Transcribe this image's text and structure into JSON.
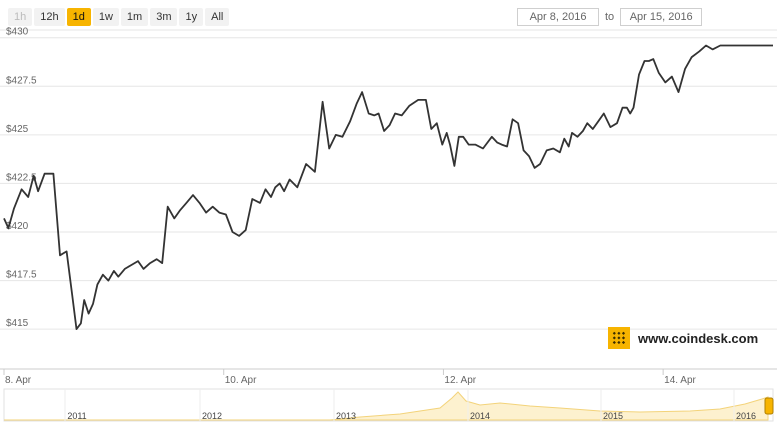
{
  "toolbar": {
    "buttons": [
      {
        "label": "1h",
        "state": "disabled"
      },
      {
        "label": "12h",
        "state": "normal"
      },
      {
        "label": "1d",
        "state": "active"
      },
      {
        "label": "1w",
        "state": "normal"
      },
      {
        "label": "1m",
        "state": "normal"
      },
      {
        "label": "3m",
        "state": "normal"
      },
      {
        "label": "1y",
        "state": "normal"
      },
      {
        "label": "All",
        "state": "normal"
      }
    ]
  },
  "date_range": {
    "from": "Apr 8, 2016",
    "to_label": "to",
    "to": "Apr 15, 2016"
  },
  "logo": {
    "text": "www.coindesk.com"
  },
  "colors": {
    "line": "#333333",
    "accent": "#f7b400",
    "navigator_fill": "#fdf1cf",
    "grid": "#e6e6e6"
  },
  "chart_data": {
    "type": "line",
    "title": "",
    "xlabel": "",
    "ylabel": "",
    "ylim": [
      413,
      430.5
    ],
    "xlim": [
      8.0,
      15.0
    ],
    "yticks": [
      {
        "value": 415,
        "label": "$415"
      },
      {
        "value": 417.5,
        "label": "$417.5"
      },
      {
        "value": 420,
        "label": "$420"
      },
      {
        "value": 422.5,
        "label": "$422.5"
      },
      {
        "value": 425,
        "label": "$425"
      },
      {
        "value": 427.5,
        "label": "$427.5"
      },
      {
        "value": 430,
        "label": "$430"
      }
    ],
    "xticks": [
      {
        "value": 8.0,
        "label": "8. Apr"
      },
      {
        "value": 10.0,
        "label": "10. Apr"
      },
      {
        "value": 12.0,
        "label": "12. Apr"
      },
      {
        "value": 14.0,
        "label": "14. Apr"
      }
    ],
    "grid": true,
    "series": [
      {
        "x": [
          8.0,
          8.04,
          8.09,
          8.16,
          8.22,
          8.27,
          8.31,
          8.37,
          8.45,
          8.51,
          8.57,
          8.62,
          8.66,
          8.7,
          8.73,
          8.77,
          8.81,
          8.85,
          8.9,
          8.95,
          9.0,
          9.04,
          9.1,
          9.16,
          9.22,
          9.27,
          9.33,
          9.39,
          9.44,
          9.49,
          9.55,
          9.6,
          9.66,
          9.72,
          9.78,
          9.84,
          9.9,
          9.96,
          10.02,
          10.08,
          10.14,
          10.2,
          10.26,
          10.33,
          10.38,
          10.43,
          10.47,
          10.51,
          10.55,
          10.6,
          10.67,
          10.75,
          10.83,
          10.9,
          10.96,
          11.02,
          11.08,
          11.15,
          11.21,
          11.26,
          11.32,
          11.37,
          11.41,
          11.46,
          11.51,
          11.56,
          11.62,
          11.69,
          11.77,
          11.84,
          11.89,
          11.94,
          11.99,
          12.03,
          12.06,
          12.1,
          12.14,
          12.18,
          12.23,
          12.29,
          12.36,
          12.44,
          12.49,
          12.53,
          12.58,
          12.63,
          12.68,
          12.73,
          12.78,
          12.83,
          12.88,
          12.94,
          13.0,
          13.06,
          13.1,
          13.14,
          13.17,
          13.22,
          13.27,
          13.31,
          13.36,
          13.41,
          13.46,
          13.52,
          13.58,
          13.63,
          13.67,
          13.7,
          13.73,
          13.78,
          13.83,
          13.87,
          13.91,
          13.96,
          14.02,
          14.08,
          14.14,
          14.2,
          14.26,
          14.33,
          14.39,
          14.45,
          14.52,
          14.59,
          14.66,
          14.72,
          14.79,
          14.85,
          14.91,
          14.98,
          15.0
        ],
        "values": [
          420.7,
          420.2,
          421.2,
          422.2,
          421.8,
          422.9,
          422.1,
          423.0,
          423.0,
          418.8,
          419.0,
          416.8,
          415.0,
          415.3,
          416.5,
          415.8,
          416.3,
          417.3,
          417.8,
          417.5,
          418.0,
          417.7,
          418.1,
          418.3,
          418.5,
          418.1,
          418.4,
          418.6,
          418.4,
          421.3,
          420.7,
          421.1,
          421.5,
          421.9,
          421.5,
          421.0,
          421.3,
          421.0,
          420.9,
          420.0,
          419.8,
          420.1,
          421.7,
          421.5,
          422.2,
          421.8,
          422.3,
          422.5,
          422.1,
          422.7,
          422.3,
          423.5,
          423.1,
          426.7,
          424.3,
          425.0,
          424.9,
          425.7,
          426.6,
          427.2,
          426.1,
          426.0,
          426.1,
          425.2,
          425.5,
          426.1,
          426.0,
          426.5,
          426.8,
          426.8,
          425.3,
          425.6,
          424.5,
          425.1,
          424.5,
          423.4,
          424.9,
          424.9,
          424.5,
          424.5,
          424.3,
          424.9,
          424.6,
          424.5,
          424.4,
          425.8,
          425.6,
          424.2,
          423.9,
          423.3,
          423.5,
          424.2,
          424.3,
          424.1,
          424.8,
          424.4,
          425.1,
          424.9,
          425.2,
          425.6,
          425.3,
          425.7,
          426.1,
          425.4,
          425.6,
          426.4,
          426.4,
          426.1,
          426.4,
          428.1,
          428.8,
          428.8,
          428.9,
          428.2,
          427.7,
          428.0,
          427.2,
          428.4,
          429.0,
          429.3,
          429.6,
          429.4,
          429.6,
          429.6,
          429.6,
          429.6,
          429.6,
          429.6,
          429.6,
          429.6,
          429.6
        ]
      }
    ],
    "navigator": {
      "labels": [
        "2011",
        "2012",
        "2013",
        "2014",
        "2015",
        "2016"
      ]
    }
  }
}
